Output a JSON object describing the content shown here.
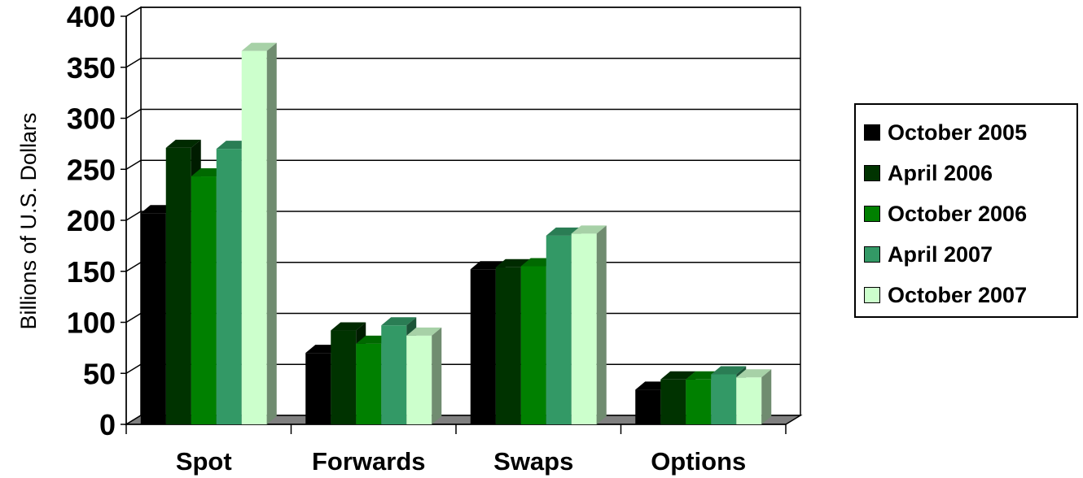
{
  "chart_data": {
    "type": "bar",
    "title": "",
    "xlabel": "",
    "ylabel": "Billions of U.S. Dollars",
    "ylim": [
      0,
      400
    ],
    "yticks": [
      "0",
      "50",
      "100",
      "150",
      "200",
      "250",
      "300",
      "350",
      "400"
    ],
    "categories": [
      "Spot",
      "Forwards",
      "Swaps",
      "Options"
    ],
    "series": [
      {
        "name": "October 2005",
        "values": [
          207,
          70,
          152,
          34
        ]
      },
      {
        "name": "April 2006",
        "values": [
          271,
          92,
          154,
          44
        ]
      },
      {
        "name": "October 2006",
        "values": [
          243,
          79,
          155,
          44
        ]
      },
      {
        "name": "April 2007",
        "values": [
          270,
          97,
          185,
          49
        ]
      },
      {
        "name": "October 2007",
        "values": [
          366,
          87,
          187,
          46
        ]
      }
    ],
    "colors": [
      "#000000",
      "#003300",
      "#008000",
      "#339966",
      "#ccffcc"
    ],
    "grid": true,
    "legend_position": "right",
    "style": "3d-clustered-column"
  }
}
